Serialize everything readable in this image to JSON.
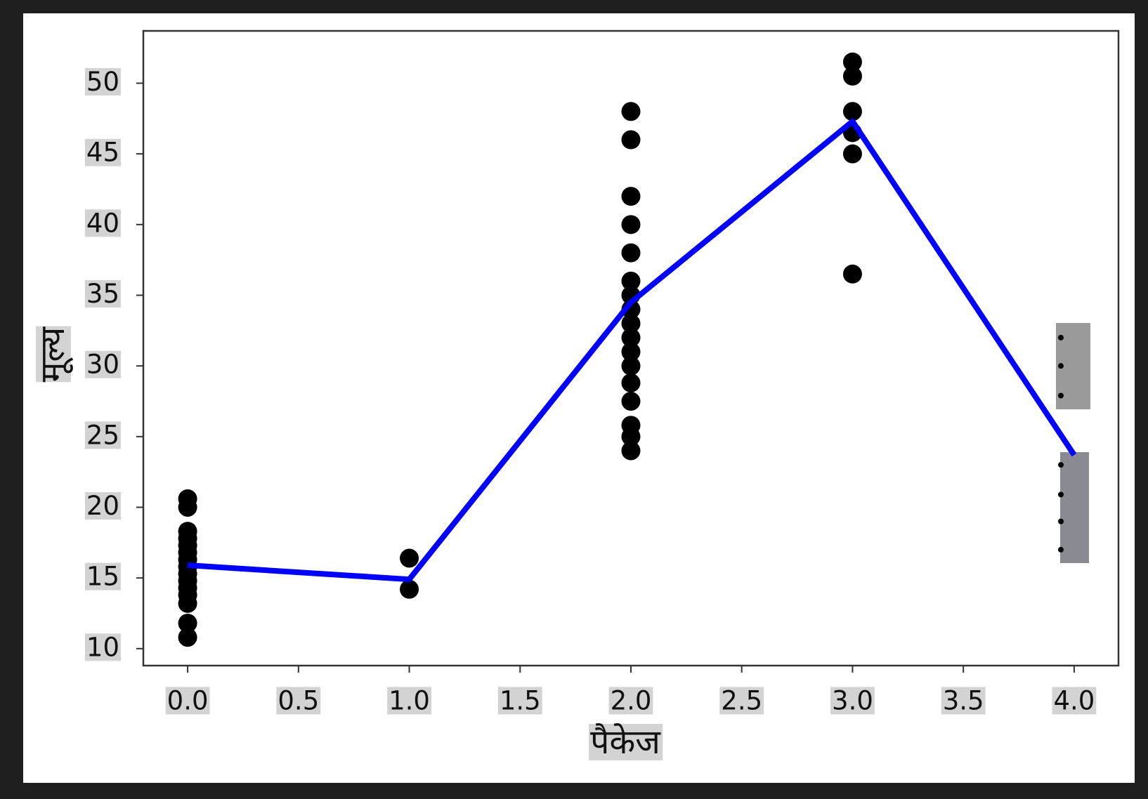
{
  "chart_data": {
    "type": "scatter",
    "xlabel": "पैकेज",
    "ylabel": "मूल्य",
    "xlim": [
      -0.2,
      4.2
    ],
    "ylim": [
      8.8,
      53.7
    ],
    "xticks": [
      {
        "value": 0,
        "label": "0.0"
      },
      0.5,
      {
        "value": 1,
        "label": "1.0"
      },
      1.5,
      {
        "value": 2,
        "label": "2.0"
      },
      2.5,
      {
        "value": 3,
        "label": "3.0"
      },
      3.5,
      {
        "value": 4,
        "label": "4.0"
      }
    ],
    "yticks": [
      10,
      15,
      20,
      25,
      30,
      35,
      40,
      45,
      50
    ],
    "series": [
      {
        "type": "scatter",
        "color": "#000000",
        "marker_size": 13.5,
        "x": [
          0,
          0,
          0,
          0,
          0,
          0,
          0,
          0,
          0,
          0,
          0,
          0,
          0,
          0,
          0,
          1,
          1,
          2,
          2,
          2,
          2,
          2,
          2,
          2,
          2,
          2,
          2,
          2,
          2,
          2,
          2,
          2,
          2,
          2,
          3,
          3,
          3,
          3,
          3,
          3
        ],
        "values": [
          10.8,
          11.8,
          13.2,
          13.8,
          14.3,
          14.8,
          15.3,
          15.8,
          16.3,
          16.8,
          17.3,
          17.8,
          18.3,
          20.0,
          20.6,
          14.2,
          16.4,
          24.0,
          25.0,
          25.8,
          27.5,
          28.8,
          30.0,
          31.0,
          32.0,
          33.0,
          34.0,
          35.0,
          36.0,
          38.0,
          40.0,
          42.0,
          46.0,
          48.0,
          36.5,
          45.0,
          46.5,
          48.0,
          50.5,
          51.5
        ]
      },
      {
        "type": "scatter",
        "color": "#000000",
        "marker_size": 4,
        "x": [
          3.94,
          3.94,
          3.94,
          3.94,
          3.94,
          3.94,
          3.94
        ],
        "values": [
          32.0,
          30.0,
          27.9,
          23.0,
          20.9,
          19.0,
          17.0
        ]
      },
      {
        "type": "line",
        "color": "#0000ff",
        "x": [
          0,
          1,
          2,
          3,
          4
        ],
        "values": [
          15.9,
          14.9,
          34.5,
          47.3,
          23.7
        ]
      }
    ]
  }
}
